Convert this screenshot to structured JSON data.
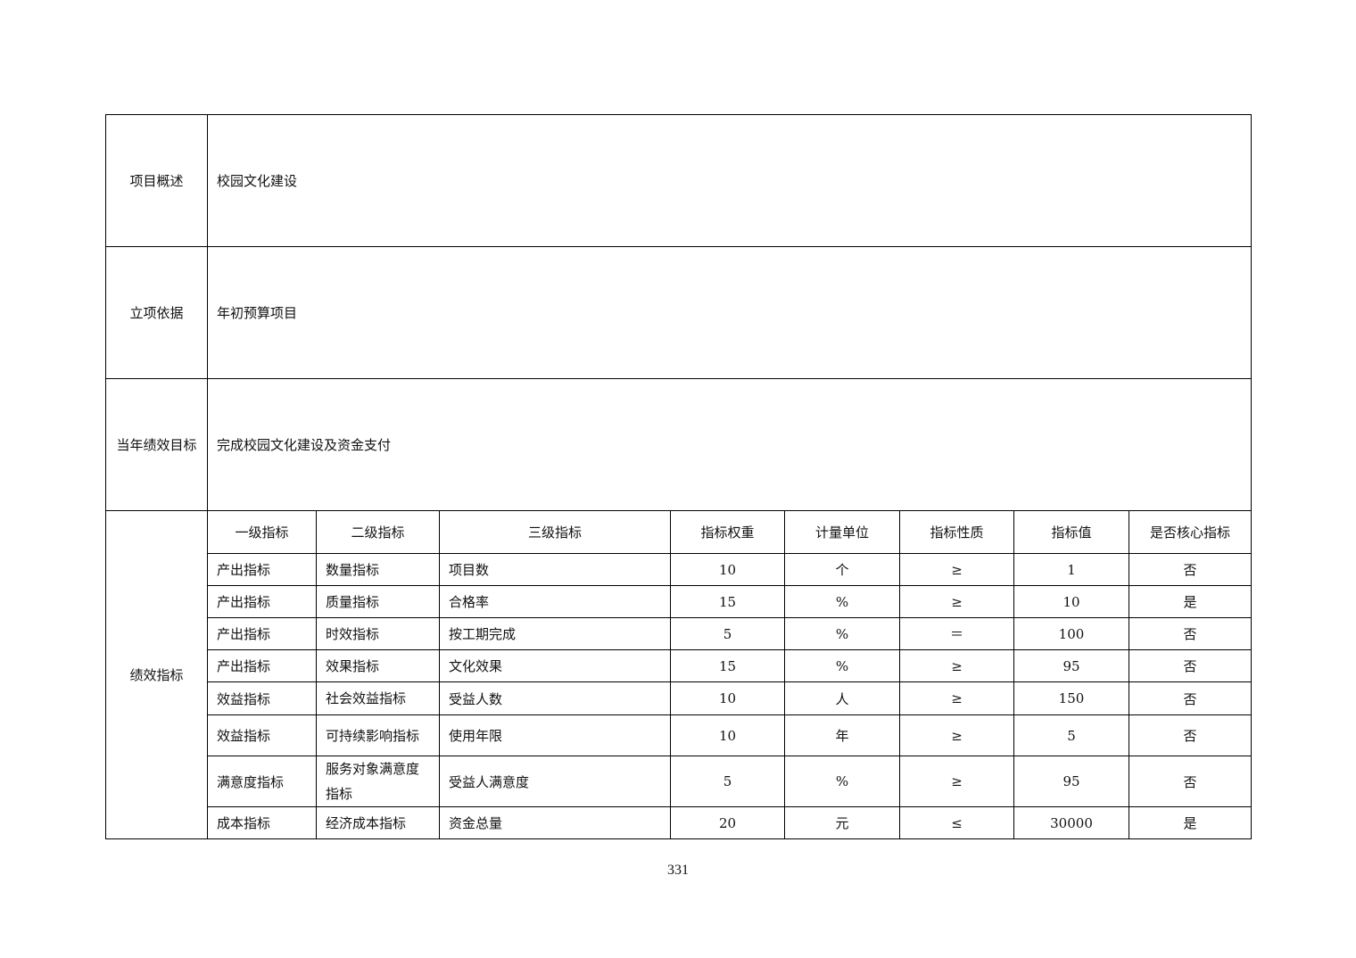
{
  "summary": {
    "label": "项目概述",
    "value": "校园文化建设"
  },
  "basis": {
    "label": "立项依据",
    "value": "年初预算项目"
  },
  "goal": {
    "label": "当年绩效目标",
    "value": "完成校园文化建设及资金支付"
  },
  "indicators": {
    "label": "绩效指标",
    "headers": [
      "一级指标",
      "二级指标",
      "三级指标",
      "指标权重",
      "计量单位",
      "指标性质",
      "指标值",
      "是否核心指标"
    ],
    "rows": [
      [
        "产出指标",
        "数量指标",
        "项目数",
        "10",
        "个",
        "≥",
        "1",
        "否"
      ],
      [
        "产出指标",
        "质量指标",
        "合格率",
        "15",
        "%",
        "≥",
        "10",
        "是"
      ],
      [
        "产出指标",
        "时效指标",
        "按工期完成",
        "5",
        "%",
        "＝",
        "100",
        "否"
      ],
      [
        "产出指标",
        "效果指标",
        "文化效果",
        "15",
        "%",
        "≥",
        "95",
        "否"
      ],
      [
        "效益指标",
        "社会效益指标",
        "受益人数",
        "10",
        "人",
        "≥",
        "150",
        "否"
      ],
      [
        "效益指标",
        "可持续影响指标",
        "使用年限",
        "10",
        "年",
        "≥",
        "5",
        "否"
      ],
      [
        "满意度指标",
        "服务对象满意度指标",
        "受益人满意度",
        "5",
        "%",
        "≥",
        "95",
        "否"
      ],
      [
        "成本指标",
        "经济成本指标",
        "资金总量",
        "20",
        "元",
        "≤",
        "30000",
        "是"
      ]
    ]
  },
  "page_number": "331"
}
